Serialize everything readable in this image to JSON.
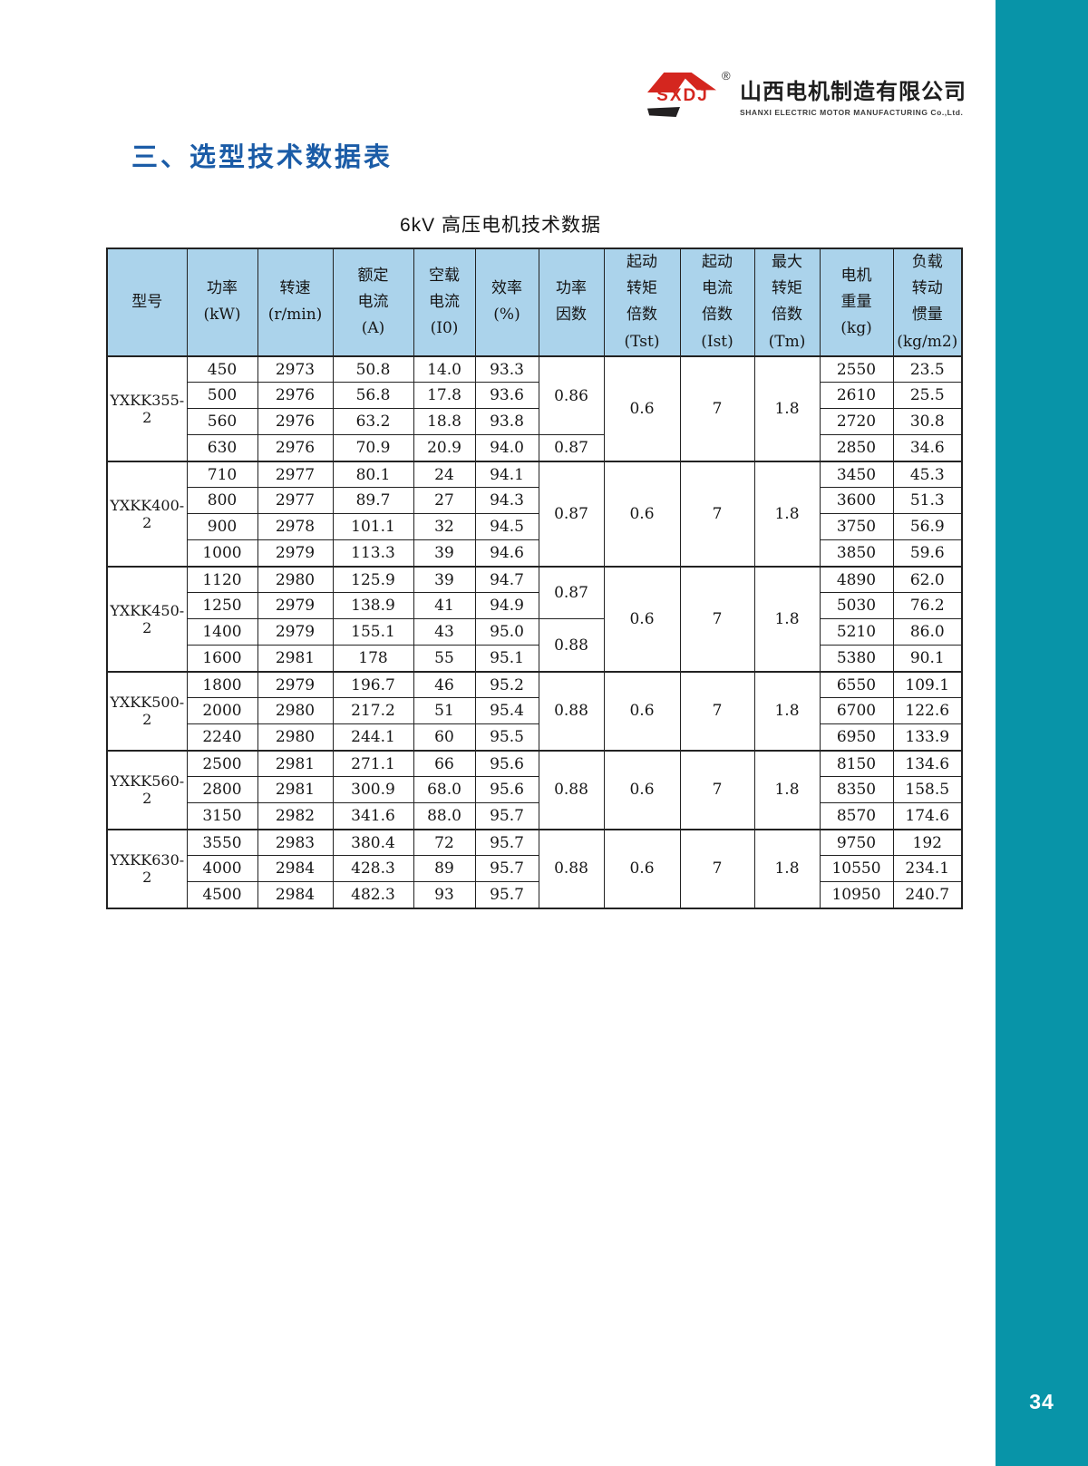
{
  "page": {
    "number": "34",
    "accent_teal": "#0894A8",
    "heading_blue": "#1B5CA7",
    "logo_red": "#D4261F",
    "table_header_bg": "#ABD3EB"
  },
  "logo": {
    "brand": "SXDJ",
    "registered_mark": "®",
    "company_cn": "山西电机制造有限公司",
    "company_en": "SHANXI  ELECTRIC  MOTOR  MANUFACTURING  Co.,Ltd."
  },
  "section_heading": "三、选型技术数据表",
  "table_title": "6kV 高压电机技术数据",
  "table": {
    "headers": [
      [
        "型号"
      ],
      [
        "功率",
        "(kW)"
      ],
      [
        "转速",
        "(r/min)"
      ],
      [
        "额定",
        "电流",
        "(A)"
      ],
      [
        "空载",
        "电流",
        "(I0)"
      ],
      [
        "效率",
        "(%)"
      ],
      [
        "功率",
        "因数"
      ],
      [
        "起动",
        "转矩",
        "倍数",
        "(Tst)"
      ],
      [
        "起动",
        "电流",
        "倍数",
        "(Ist)"
      ],
      [
        "最大",
        "转矩",
        "倍数",
        "(Tm)"
      ],
      [
        "电机",
        "重量",
        "(kg)"
      ],
      [
        "负载",
        "转动",
        "惯量",
        "(kg/m2)"
      ]
    ],
    "groups": [
      {
        "model": "YXKK355-2",
        "tst": "0.6",
        "ist": "7",
        "tm": "1.8",
        "power_factor_spans": [
          {
            "value": "0.86",
            "rows": 3
          },
          {
            "value": "0.87",
            "rows": 1
          }
        ],
        "rows": [
          {
            "power": "450",
            "speed": "2973",
            "rated_current": "50.8",
            "noload_current": "14.0",
            "efficiency": "93.3",
            "weight": "2550",
            "inertia": "23.5"
          },
          {
            "power": "500",
            "speed": "2976",
            "rated_current": "56.8",
            "noload_current": "17.8",
            "efficiency": "93.6",
            "weight": "2610",
            "inertia": "25.5"
          },
          {
            "power": "560",
            "speed": "2976",
            "rated_current": "63.2",
            "noload_current": "18.8",
            "efficiency": "93.8",
            "weight": "2720",
            "inertia": "30.8"
          },
          {
            "power": "630",
            "speed": "2976",
            "rated_current": "70.9",
            "noload_current": "20.9",
            "efficiency": "94.0",
            "weight": "2850",
            "inertia": "34.6"
          }
        ]
      },
      {
        "model": "YXKK400-2",
        "tst": "0.6",
        "ist": "7",
        "tm": "1.8",
        "power_factor_spans": [
          {
            "value": "0.87",
            "rows": 4
          }
        ],
        "rows": [
          {
            "power": "710",
            "speed": "2977",
            "rated_current": "80.1",
            "noload_current": "24",
            "efficiency": "94.1",
            "weight": "3450",
            "inertia": "45.3"
          },
          {
            "power": "800",
            "speed": "2977",
            "rated_current": "89.7",
            "noload_current": "27",
            "efficiency": "94.3",
            "weight": "3600",
            "inertia": "51.3"
          },
          {
            "power": "900",
            "speed": "2978",
            "rated_current": "101.1",
            "noload_current": "32",
            "efficiency": "94.5",
            "weight": "3750",
            "inertia": "56.9"
          },
          {
            "power": "1000",
            "speed": "2979",
            "rated_current": "113.3",
            "noload_current": "39",
            "efficiency": "94.6",
            "weight": "3850",
            "inertia": "59.6"
          }
        ]
      },
      {
        "model": "YXKK450-2",
        "tst": "0.6",
        "ist": "7",
        "tm": "1.8",
        "power_factor_spans": [
          {
            "value": "0.87",
            "rows": 2
          },
          {
            "value": "0.88",
            "rows": 2
          }
        ],
        "rows": [
          {
            "power": "1120",
            "speed": "2980",
            "rated_current": "125.9",
            "noload_current": "39",
            "efficiency": "94.7",
            "weight": "4890",
            "inertia": "62.0"
          },
          {
            "power": "1250",
            "speed": "2979",
            "rated_current": "138.9",
            "noload_current": "41",
            "efficiency": "94.9",
            "weight": "5030",
            "inertia": "76.2"
          },
          {
            "power": "1400",
            "speed": "2979",
            "rated_current": "155.1",
            "noload_current": "43",
            "efficiency": "95.0",
            "weight": "5210",
            "inertia": "86.0"
          },
          {
            "power": "1600",
            "speed": "2981",
            "rated_current": "178",
            "noload_current": "55",
            "efficiency": "95.1",
            "weight": "5380",
            "inertia": "90.1"
          }
        ]
      },
      {
        "model": "YXKK500-2",
        "tst": "0.6",
        "ist": "7",
        "tm": "1.8",
        "power_factor_spans": [
          {
            "value": "0.88",
            "rows": 3
          }
        ],
        "rows": [
          {
            "power": "1800",
            "speed": "2979",
            "rated_current": "196.7",
            "noload_current": "46",
            "efficiency": "95.2",
            "weight": "6550",
            "inertia": "109.1"
          },
          {
            "power": "2000",
            "speed": "2980",
            "rated_current": "217.2",
            "noload_current": "51",
            "efficiency": "95.4",
            "weight": "6700",
            "inertia": "122.6"
          },
          {
            "power": "2240",
            "speed": "2980",
            "rated_current": "244.1",
            "noload_current": "60",
            "efficiency": "95.5",
            "weight": "6950",
            "inertia": "133.9"
          }
        ]
      },
      {
        "model": "YXKK560-2",
        "tst": "0.6",
        "ist": "7",
        "tm": "1.8",
        "power_factor_spans": [
          {
            "value": "0.88",
            "rows": 3
          }
        ],
        "rows": [
          {
            "power": "2500",
            "speed": "2981",
            "rated_current": "271.1",
            "noload_current": "66",
            "efficiency": "95.6",
            "weight": "8150",
            "inertia": "134.6"
          },
          {
            "power": "2800",
            "speed": "2981",
            "rated_current": "300.9",
            "noload_current": "68.0",
            "efficiency": "95.6",
            "weight": "8350",
            "inertia": "158.5"
          },
          {
            "power": "3150",
            "speed": "2982",
            "rated_current": "341.6",
            "noload_current": "88.0",
            "efficiency": "95.7",
            "weight": "8570",
            "inertia": "174.6"
          }
        ]
      },
      {
        "model": "YXKK630-2",
        "tst": "0.6",
        "ist": "7",
        "tm": "1.8",
        "power_factor_spans": [
          {
            "value": "0.88",
            "rows": 3
          }
        ],
        "rows": [
          {
            "power": "3550",
            "speed": "2983",
            "rated_current": "380.4",
            "noload_current": "72",
            "efficiency": "95.7",
            "weight": "9750",
            "inertia": "192"
          },
          {
            "power": "4000",
            "speed": "2984",
            "rated_current": "428.3",
            "noload_current": "89",
            "efficiency": "95.7",
            "weight": "10550",
            "inertia": "234.1"
          },
          {
            "power": "4500",
            "speed": "2984",
            "rated_current": "482.3",
            "noload_current": "93",
            "efficiency": "95.7",
            "weight": "10950",
            "inertia": "240.7"
          }
        ]
      }
    ]
  }
}
